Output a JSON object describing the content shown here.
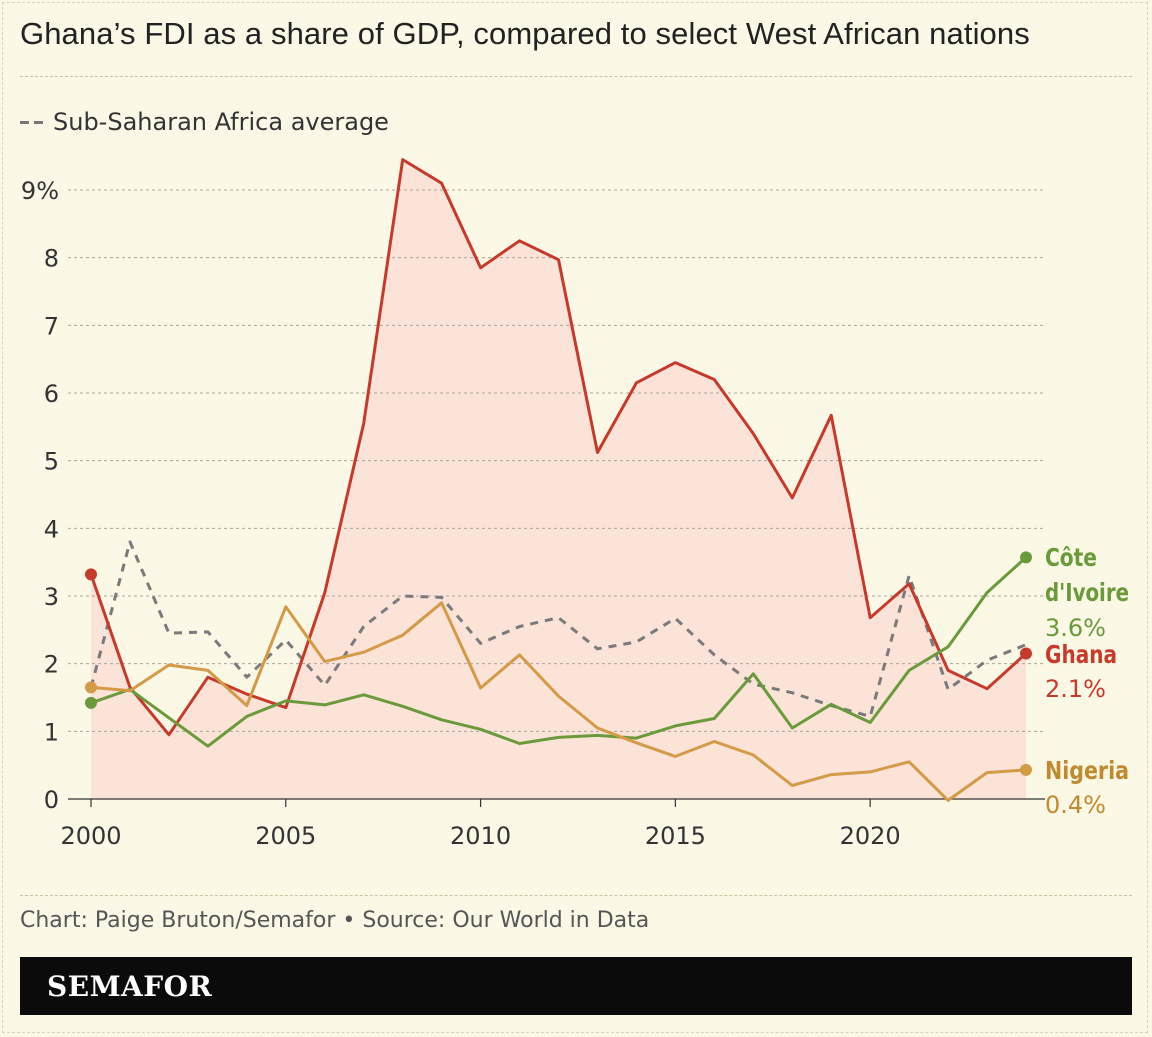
{
  "title": "Ghana’s FDI as a share of GDP, compared to select West African nations",
  "legend": {
    "dashed_label": "Sub-Saharan Africa average"
  },
  "footer": {
    "credit": "Chart: Paige Bruton/Semafor • Source: Our World in Data"
  },
  "brand": {
    "name": "SEMAFOR"
  },
  "chart_data": {
    "type": "line",
    "x": [
      2000,
      2001,
      2002,
      2003,
      2004,
      2005,
      2006,
      2007,
      2008,
      2009,
      2010,
      2011,
      2012,
      2013,
      2014,
      2015,
      2016,
      2017,
      2018,
      2019,
      2020,
      2021,
      2022,
      2023,
      2024
    ],
    "xlim": [
      2000,
      2024
    ],
    "ylim": [
      0,
      9
    ],
    "x_ticks": [
      "2000",
      "2005",
      "2010",
      "2015",
      "2020"
    ],
    "x_tick_values": [
      2000,
      2005,
      2010,
      2015,
      2020
    ],
    "y_ticks": [
      "0",
      "1",
      "2",
      "3",
      "4",
      "5",
      "6",
      "7",
      "8",
      "9%"
    ],
    "y_tick_values": [
      0,
      1,
      2,
      3,
      4,
      5,
      6,
      7,
      8,
      9
    ],
    "grid": true,
    "series": [
      {
        "name": "Sub-Saharan Africa average",
        "style": "dashed",
        "color": "#7a7a7a",
        "values": [
          1.65,
          3.8,
          2.45,
          2.47,
          1.8,
          2.35,
          1.68,
          2.55,
          3.0,
          2.98,
          2.3,
          2.55,
          2.68,
          2.22,
          2.32,
          2.67,
          2.13,
          1.7,
          1.57,
          1.38,
          1.22,
          3.3,
          1.62,
          2.05,
          2.28
        ]
      },
      {
        "name": "Ghana",
        "color": "#c73a2a",
        "fill": "#fbe3d8",
        "values": [
          3.32,
          1.65,
          0.95,
          1.8,
          1.55,
          1.35,
          3.05,
          5.55,
          9.45,
          9.1,
          7.85,
          8.25,
          7.97,
          5.12,
          6.15,
          6.45,
          6.2,
          5.4,
          4.45,
          5.67,
          2.68,
          3.18,
          1.9,
          1.63,
          2.15
        ],
        "label_value": "2.1%"
      },
      {
        "name": "Côte d'Ivoire",
        "color": "#6a9a3a",
        "values": [
          1.42,
          1.62,
          1.2,
          0.78,
          1.22,
          1.45,
          1.39,
          1.54,
          1.37,
          1.17,
          1.03,
          0.82,
          0.91,
          0.94,
          0.9,
          1.08,
          1.19,
          1.85,
          1.05,
          1.4,
          1.13,
          1.9,
          2.25,
          3.05,
          3.57
        ],
        "label_value": "3.6%"
      },
      {
        "name": "Nigeria",
        "color": "#d49a45",
        "values": [
          1.65,
          1.6,
          1.98,
          1.9,
          1.38,
          2.84,
          2.03,
          2.17,
          2.42,
          2.9,
          1.64,
          2.13,
          1.52,
          1.05,
          0.83,
          0.63,
          0.85,
          0.65,
          0.2,
          0.36,
          0.4,
          0.55,
          -0.02,
          0.39,
          0.43
        ],
        "label_value": "0.4%"
      }
    ],
    "end_labels": [
      {
        "series": "Côte d'Ivoire",
        "lines": [
          "Côte",
          "d'Ivoire"
        ],
        "value": "3.6%",
        "color": "#6a9a3a"
      },
      {
        "series": "Ghana",
        "lines": [
          "Ghana"
        ],
        "value": "2.1%",
        "color": "#c73a2a"
      },
      {
        "series": "Nigeria",
        "lines": [
          "Nigeria"
        ],
        "value": "0.4%",
        "color": "#c08a2e"
      }
    ]
  }
}
